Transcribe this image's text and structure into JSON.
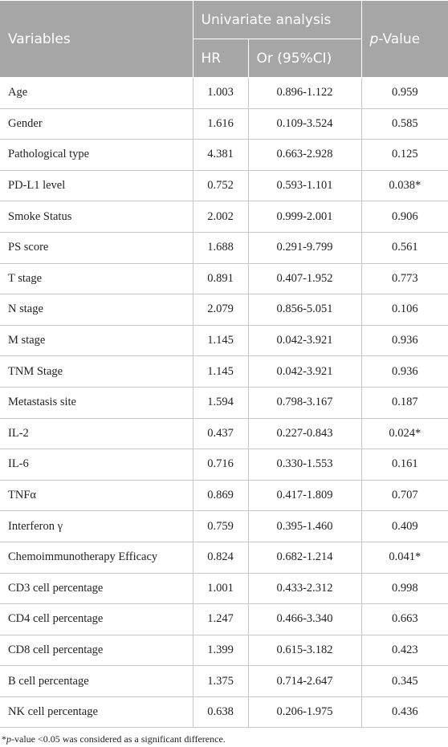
{
  "table": {
    "header": {
      "variables": "Variables",
      "group": "Univariate analysis",
      "hr": "HR",
      "ci": "Or (95%CI)",
      "p_value": [
        "p",
        "-Value"
      ]
    },
    "rows": [
      [
        "Age",
        "1.003",
        "0.896-1.122",
        "0.959"
      ],
      [
        "Gender",
        "1.616",
        "0.109-3.524",
        "0.585"
      ],
      [
        "Pathological type",
        "4.381",
        "0.663-2.928",
        "0.125"
      ],
      [
        "PD-L1 level",
        "0.752",
        "0.593-1.101",
        "0.038*"
      ],
      [
        "Smoke Status",
        "2.002",
        "0.999-2.001",
        "0.906"
      ],
      [
        "PS score",
        "1.688",
        "0.291-9.799",
        "0.561"
      ],
      [
        "T stage",
        "0.891",
        "0.407-1.952",
        "0.773"
      ],
      [
        "N stage",
        "2.079",
        "0.856-5.051",
        "0.106"
      ],
      [
        "M stage",
        "1.145",
        "0.042-3.921",
        "0.936"
      ],
      [
        "TNM Stage",
        "1.145",
        "0.042-3.921",
        "0.936"
      ],
      [
        "Metastasis site",
        "1.594",
        "0.798-3.167",
        "0.187"
      ],
      [
        "IL-2",
        "0.437",
        "0.227-0.843",
        "0.024*"
      ],
      [
        "IL-6",
        "0.716",
        "0.330-1.553",
        "0.161"
      ],
      [
        "TNFα",
        "0.869",
        "0.417-1.809",
        "0.707"
      ],
      [
        "Interferon γ",
        "0.759",
        "0.395-1.460",
        "0.409"
      ],
      [
        "Chemoimmunotherapy Efficacy",
        "0.824",
        "0.682-1.214",
        "0.041*"
      ],
      [
        "CD3 cell percentage",
        "1.001",
        "0.433-2.312",
        "0.998"
      ],
      [
        "CD4 cell percentage",
        "1.247",
        "0.466-3.340",
        "0.663"
      ],
      [
        "CD8 cell percentage",
        "1.399",
        "0.615-3.182",
        "0.423"
      ],
      [
        "B cell percentage",
        "1.375",
        "0.714-2.647",
        "0.345"
      ],
      [
        "NK cell percentage",
        "0.638",
        "0.206-1.975",
        "0.436"
      ]
    ],
    "footnote": [
      "*",
      "p",
      "-value <0.05 was considered as a significant difference."
    ]
  }
}
